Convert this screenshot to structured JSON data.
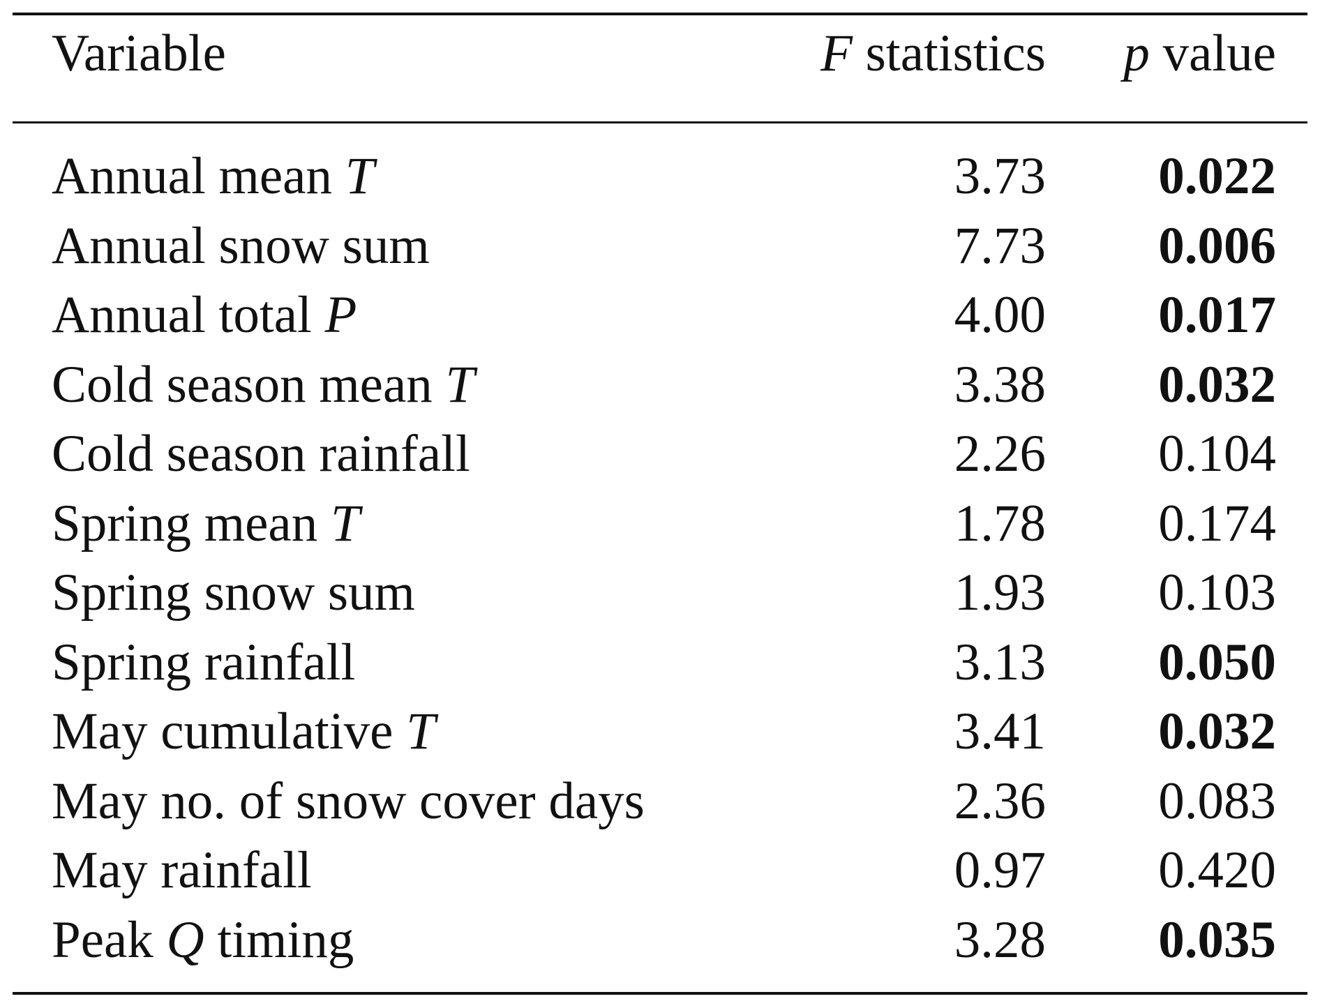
{
  "table": {
    "header": {
      "variable": "Variable",
      "f_symbol": "F",
      "f_text": " statistics",
      "p_symbol": "p",
      "p_text": " value"
    },
    "rows": [
      {
        "pre": "Annual mean ",
        "sym": "T",
        "post": "",
        "f": "3.73",
        "p": "0.022",
        "significant": true
      },
      {
        "pre": "Annual snow sum",
        "sym": "",
        "post": "",
        "f": "7.73",
        "p": "0.006",
        "significant": true
      },
      {
        "pre": "Annual total ",
        "sym": "P",
        "post": "",
        "f": "4.00",
        "p": "0.017",
        "significant": true
      },
      {
        "pre": "Cold season mean ",
        "sym": "T",
        "post": "",
        "f": "3.38",
        "p": "0.032",
        "significant": true
      },
      {
        "pre": "Cold season rainfall",
        "sym": "",
        "post": "",
        "f": "2.26",
        "p": "0.104",
        "significant": false
      },
      {
        "pre": "Spring mean ",
        "sym": "T",
        "post": "",
        "f": "1.78",
        "p": "0.174",
        "significant": false
      },
      {
        "pre": "Spring snow sum",
        "sym": "",
        "post": "",
        "f": "1.93",
        "p": "0.103",
        "significant": false
      },
      {
        "pre": "Spring rainfall",
        "sym": "",
        "post": "",
        "f": "3.13",
        "p": "0.050",
        "significant": true
      },
      {
        "pre": "May cumulative ",
        "sym": "T",
        "post": "",
        "f": "3.41",
        "p": "0.032",
        "significant": true
      },
      {
        "pre": "May no. of snow cover days",
        "sym": "",
        "post": "",
        "f": "2.36",
        "p": "0.083",
        "significant": false
      },
      {
        "pre": "May rainfall",
        "sym": "",
        "post": "",
        "f": "0.97",
        "p": "0.420",
        "significant": false
      },
      {
        "pre": "Peak ",
        "sym": "Q",
        "post": " timing",
        "f": "3.28",
        "p": "0.035",
        "significant": true
      }
    ]
  }
}
